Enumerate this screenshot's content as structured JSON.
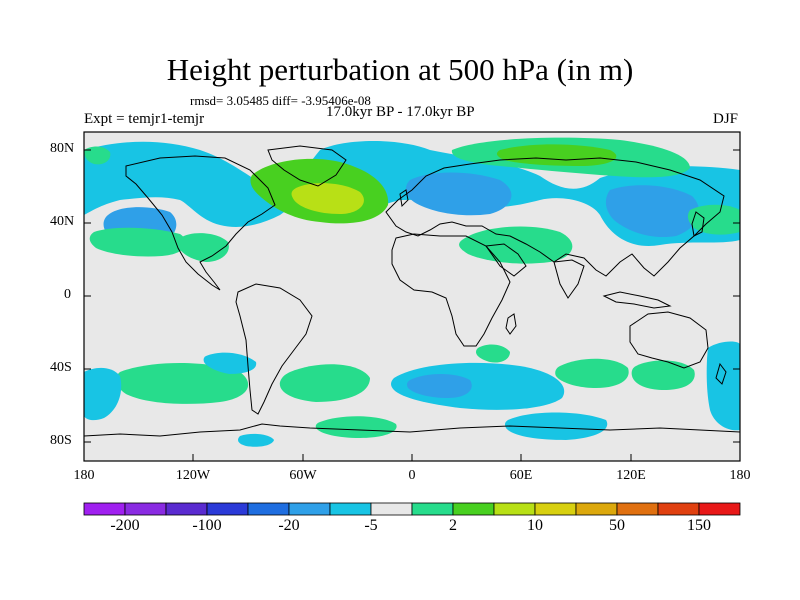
{
  "title": "Height perturbation at 500 hPa (in m)",
  "stats": "rmsd= 3.05485 diff= -3.95406e-08",
  "experiment": "Expt = temjr1-temjr",
  "period": "17.0kyr BP - 17.0kyr BP",
  "season": "DJF",
  "lat_labels": [
    "80N",
    "40N",
    "0",
    "40S",
    "80S"
  ],
  "lon_labels": [
    "180",
    "120W",
    "60W",
    "0",
    "60E",
    "120E",
    "180"
  ],
  "colorbar": {
    "colors": [
      "#a020f0",
      "#8a2be2",
      "#5a2bd0",
      "#2b3ad8",
      "#1f6ee0",
      "#2fa0e8",
      "#18c4e4",
      "#e8e8e8",
      "#27dc8c",
      "#48d020",
      "#b8e016",
      "#d8d010",
      "#dca80c",
      "#e07010",
      "#e04010",
      "#e81818"
    ],
    "labels": [
      "-200",
      "-100",
      "-20",
      "-5",
      "2",
      "10",
      "50",
      "150"
    ]
  },
  "field_colors": {
    "neutral": "#e8e8e8",
    "neg_weak": "#18c4e4",
    "neg_mid": "#2fa0e8",
    "pos_weak": "#27dc8c",
    "pos_mid": "#48d020",
    "pos_strong": "#b8e016"
  }
}
